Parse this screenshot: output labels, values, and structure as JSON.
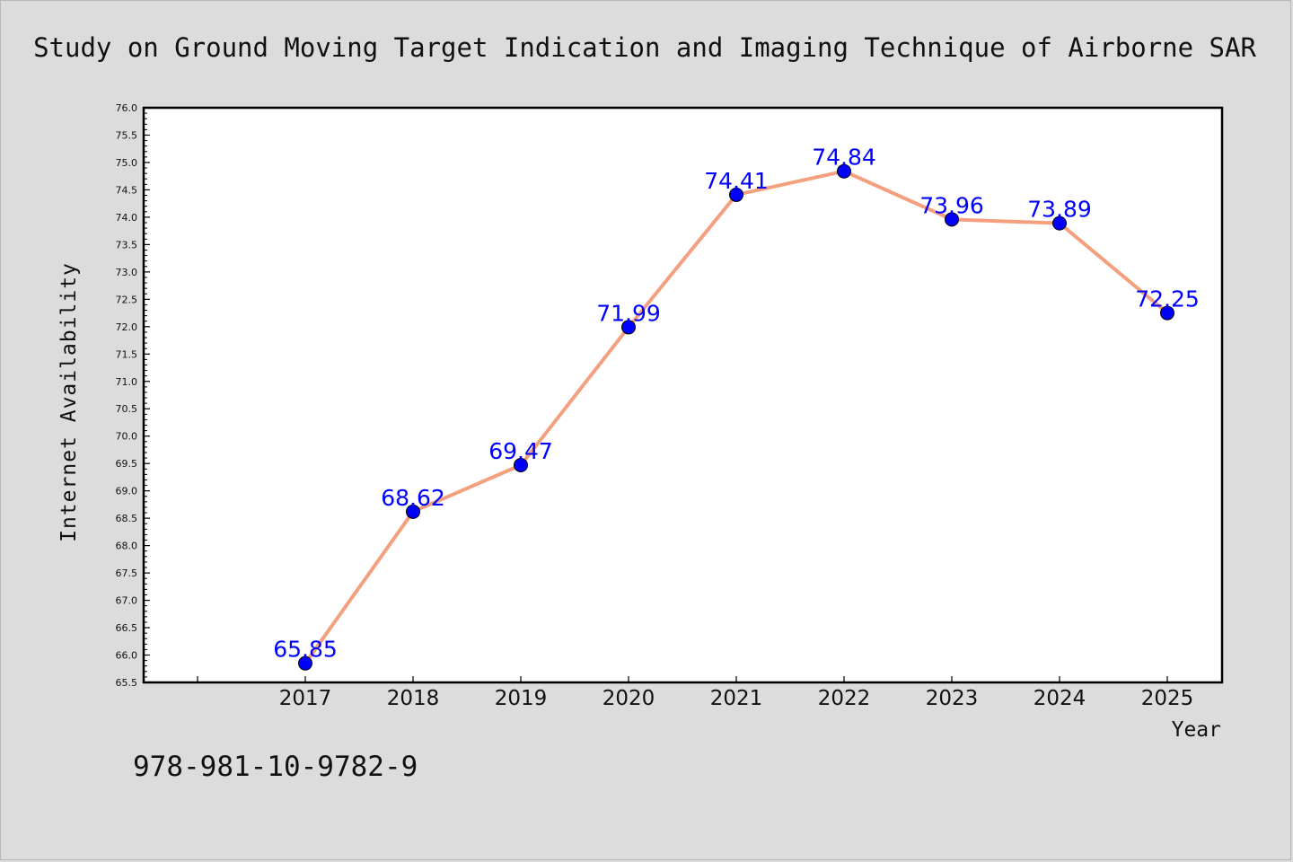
{
  "chart_data": {
    "type": "line",
    "title": "Study on Ground Moving Target Indication and Imaging Technique of Airborne SAR",
    "xlabel": "Year",
    "ylabel": "Internet Availability",
    "categories": [
      "2017",
      "2018",
      "2019",
      "2020",
      "2021",
      "2022",
      "2023",
      "2024",
      "2025"
    ],
    "values": [
      65.85,
      68.62,
      69.47,
      71.99,
      74.41,
      74.84,
      73.96,
      73.89,
      72.25
    ],
    "data_labels": [
      "65.85",
      "68.62",
      "69.47",
      "71.99",
      "74.41",
      "74.84",
      "73.96",
      "73.89",
      "72.25"
    ],
    "ylim": [
      65.5,
      76.0
    ],
    "y_ticks": [
      "65.5",
      "66.0",
      "66.5",
      "67.0",
      "67.5",
      "68.0",
      "68.5",
      "69.0",
      "69.5",
      "70.0",
      "70.5",
      "71.0",
      "71.5",
      "72.0",
      "72.5",
      "73.0",
      "73.5",
      "74.0",
      "74.5",
      "75.0",
      "75.5",
      "76.0"
    ],
    "grid": false,
    "line_color": "#f4a07f",
    "marker_color": "#0000ff",
    "label_color": "#0000ff"
  },
  "footer": {
    "isbn": "978-981-10-9782-9"
  }
}
